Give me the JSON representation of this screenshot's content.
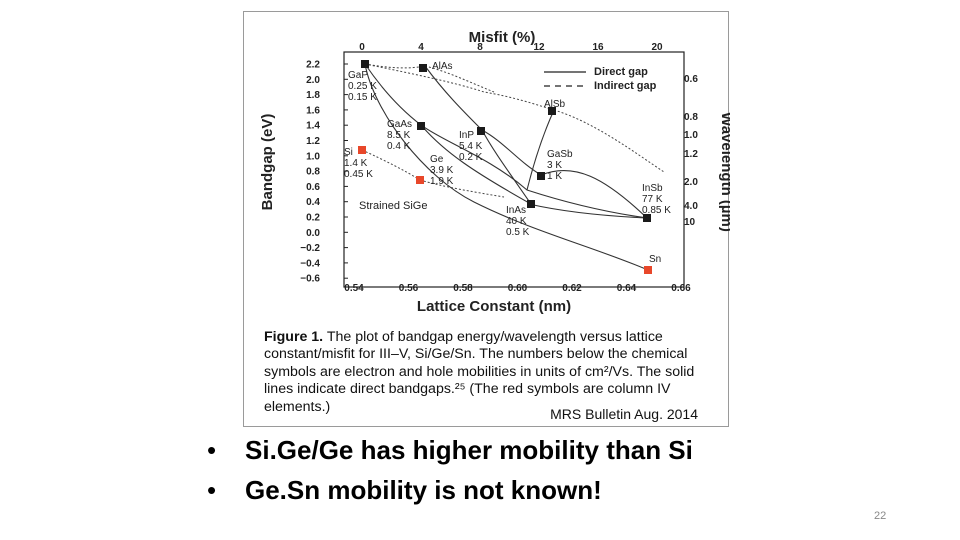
{
  "figure": {
    "top_axis_title": "Misfit (%)",
    "top_ticks": [
      "0",
      "4",
      "8",
      "12",
      "16",
      "20"
    ],
    "left_axis_title": "Bandgap (eV)",
    "y_ticks": [
      "2.2",
      "2.0",
      "1.8",
      "1.6",
      "1.4",
      "1.2",
      "1.0",
      "0.8",
      "0.6",
      "0.4",
      "0.2",
      "0.0",
      "−0.2",
      "−0.4",
      "−0.6"
    ],
    "right_axis_title": "Wavelength (µm)",
    "right_ticks": [
      "0.6",
      "0.8",
      "1.0",
      "1.2",
      "2.0",
      "4.0",
      "10"
    ],
    "bottom_axis_title": "Lattice Constant (nm)",
    "x_ticks": [
      "0.54",
      "0.56",
      "0.58",
      "0.60",
      "0.62",
      "0.64",
      "0.66"
    ],
    "legend": {
      "direct": "Direct gap",
      "indirect": "Indirect gap"
    },
    "labels": {
      "alas": "AlAs",
      "gap": [
        "GaP",
        "0.25 K",
        "0.15 K"
      ],
      "alsb": "AlSb",
      "gaas": [
        "GaAs",
        "8.5 K",
        "0.4 K"
      ],
      "inp": [
        "InP",
        "5.4 K",
        "0.2 K"
      ],
      "si": [
        "Si",
        "1.4 K",
        "0.45 K"
      ],
      "ge": [
        "Ge",
        "3.9 K",
        "1.9 K"
      ],
      "gasb": [
        "GaSb",
        "3 K",
        "1 K"
      ],
      "insb": [
        "InSb",
        "77 K",
        "0.85 K"
      ],
      "inas": [
        "InAs",
        "40 K",
        "0.5 K"
      ],
      "strained": "Strained SiGe",
      "sn": "Sn"
    },
    "colors": {
      "group_iv": "#e8472a",
      "iii_v": "#1a1a1a"
    },
    "caption": {
      "bold": "Figure 1.",
      "text": " The plot of bandgap energy/wavelength versus lattice constant/misfit for III–V, Si/Ge/Sn. The numbers below the chemical symbols are electron and hole mobilities in units of cm²/Vs. The solid lines indicate direct bandgaps.²⁵ (The red symbols are column IV elements.)"
    },
    "credit": "MRS Bulletin Aug. 2014"
  },
  "bullets": [
    "Si.Ge/Ge has higher mobility than Si",
    "Ge.Sn mobility is not known!"
  ],
  "slide_number": "22"
}
